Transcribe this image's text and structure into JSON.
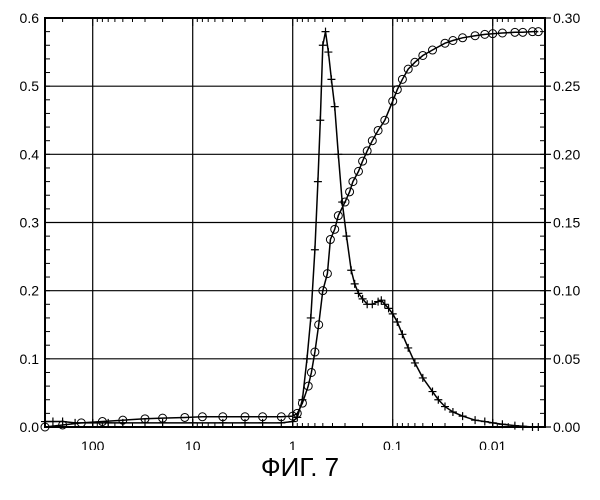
{
  "caption": "ФИГ. 7",
  "chart_data": {
    "type": "line",
    "x_scale": "log",
    "x_reversed": true,
    "xlim": [
      300,
      0.003
    ],
    "ylim_left": [
      0,
      0.6
    ],
    "ylim_right": [
      0,
      0.3
    ],
    "grid": true,
    "x_ticks": [
      {
        "value": 100,
        "label": "100"
      },
      {
        "value": 10,
        "label": "10"
      },
      {
        "value": 1,
        "label": "1"
      },
      {
        "value": 0.1,
        "label": "0.1"
      },
      {
        "value": 0.01,
        "label": "0.01"
      }
    ],
    "y_left_ticks": [
      {
        "value": 0,
        "label": "0.0"
      },
      {
        "value": 0.1,
        "label": "0.1"
      },
      {
        "value": 0.2,
        "label": "0.2"
      },
      {
        "value": 0.3,
        "label": "0.3"
      },
      {
        "value": 0.4,
        "label": "0.4"
      },
      {
        "value": 0.5,
        "label": "0.5"
      },
      {
        "value": 0.6,
        "label": "0.6"
      }
    ],
    "y_right_ticks": [
      {
        "value": 0,
        "label": "0.00"
      },
      {
        "value": 0.05,
        "label": "0.05"
      },
      {
        "value": 0.1,
        "label": "0.10"
      },
      {
        "value": 0.15,
        "label": "0.15"
      },
      {
        "value": 0.2,
        "label": "0.20"
      },
      {
        "value": 0.25,
        "label": "0.25"
      },
      {
        "value": 0.3,
        "label": "0.30"
      }
    ],
    "series": [
      {
        "marker": "circle",
        "axis": "left",
        "points": [
          [
            300,
            0.0
          ],
          [
            200,
            0.003
          ],
          [
            130,
            0.006
          ],
          [
            80,
            0.008
          ],
          [
            50,
            0.01
          ],
          [
            30,
            0.012
          ],
          [
            20,
            0.013
          ],
          [
            12,
            0.014
          ],
          [
            8,
            0.015
          ],
          [
            5,
            0.015
          ],
          [
            3,
            0.015
          ],
          [
            2,
            0.015
          ],
          [
            1.3,
            0.015
          ],
          [
            1.0,
            0.016
          ],
          [
            0.9,
            0.02
          ],
          [
            0.8,
            0.035
          ],
          [
            0.7,
            0.06
          ],
          [
            0.65,
            0.08
          ],
          [
            0.6,
            0.11
          ],
          [
            0.55,
            0.15
          ],
          [
            0.5,
            0.2
          ],
          [
            0.45,
            0.225
          ],
          [
            0.42,
            0.275
          ],
          [
            0.38,
            0.29
          ],
          [
            0.35,
            0.31
          ],
          [
            0.3,
            0.33
          ],
          [
            0.27,
            0.345
          ],
          [
            0.25,
            0.36
          ],
          [
            0.22,
            0.375
          ],
          [
            0.2,
            0.39
          ],
          [
            0.18,
            0.405
          ],
          [
            0.16,
            0.42
          ],
          [
            0.14,
            0.435
          ],
          [
            0.12,
            0.45
          ],
          [
            0.1,
            0.478
          ],
          [
            0.09,
            0.495
          ],
          [
            0.08,
            0.51
          ],
          [
            0.07,
            0.525
          ],
          [
            0.06,
            0.535
          ],
          [
            0.05,
            0.545
          ],
          [
            0.04,
            0.553
          ],
          [
            0.03,
            0.563
          ],
          [
            0.025,
            0.567
          ],
          [
            0.02,
            0.571
          ],
          [
            0.015,
            0.574
          ],
          [
            0.012,
            0.576
          ],
          [
            0.01,
            0.577
          ],
          [
            0.008,
            0.578
          ],
          [
            0.006,
            0.579
          ],
          [
            0.005,
            0.579
          ],
          [
            0.004,
            0.58
          ],
          [
            0.0035,
            0.58
          ]
        ]
      },
      {
        "marker": "plus",
        "axis": "right",
        "points": [
          [
            300,
            0.004
          ],
          [
            250,
            0.004
          ],
          [
            200,
            0.004
          ],
          [
            150,
            0.003
          ],
          [
            100,
            0.003
          ],
          [
            70,
            0.003
          ],
          [
            50,
            0.003
          ],
          [
            30,
            0.003
          ],
          [
            20,
            0.003
          ],
          [
            10,
            0.003
          ],
          [
            5,
            0.003
          ],
          [
            3,
            0.003
          ],
          [
            2,
            0.003
          ],
          [
            1.3,
            0.003
          ],
          [
            1.0,
            0.004
          ],
          [
            0.9,
            0.007
          ],
          [
            0.8,
            0.02
          ],
          [
            0.72,
            0.05
          ],
          [
            0.66,
            0.08
          ],
          [
            0.6,
            0.13
          ],
          [
            0.56,
            0.18
          ],
          [
            0.53,
            0.225
          ],
          [
            0.5,
            0.28
          ],
          [
            0.47,
            0.29
          ],
          [
            0.44,
            0.275
          ],
          [
            0.41,
            0.255
          ],
          [
            0.38,
            0.235
          ],
          [
            0.35,
            0.2
          ],
          [
            0.32,
            0.165
          ],
          [
            0.29,
            0.14
          ],
          [
            0.26,
            0.115
          ],
          [
            0.24,
            0.105
          ],
          [
            0.22,
            0.098
          ],
          [
            0.2,
            0.094
          ],
          [
            0.18,
            0.09
          ],
          [
            0.16,
            0.09
          ],
          [
            0.14,
            0.092
          ],
          [
            0.13,
            0.093
          ],
          [
            0.12,
            0.09
          ],
          [
            0.11,
            0.087
          ],
          [
            0.1,
            0.083
          ],
          [
            0.09,
            0.077
          ],
          [
            0.08,
            0.068
          ],
          [
            0.07,
            0.058
          ],
          [
            0.06,
            0.047
          ],
          [
            0.05,
            0.036
          ],
          [
            0.04,
            0.026
          ],
          [
            0.035,
            0.02
          ],
          [
            0.03,
            0.015
          ],
          [
            0.025,
            0.011
          ],
          [
            0.02,
            0.008
          ],
          [
            0.015,
            0.005
          ],
          [
            0.012,
            0.004
          ],
          [
            0.01,
            0.003
          ],
          [
            0.008,
            0.002
          ],
          [
            0.006,
            0.001
          ],
          [
            0.005,
            0.0005
          ],
          [
            0.004,
            0.0
          ],
          [
            0.0035,
            0.0
          ]
        ]
      }
    ]
  }
}
